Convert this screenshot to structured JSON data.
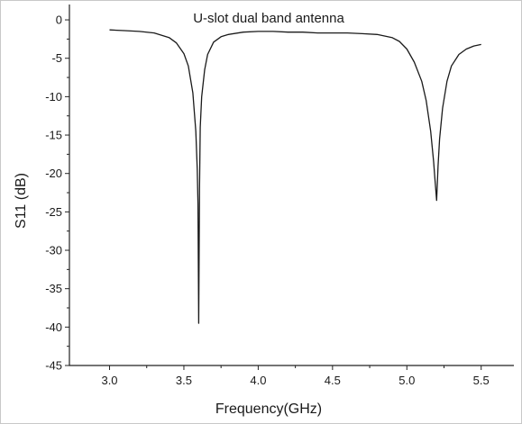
{
  "chart_data": {
    "type": "line",
    "title": "U-slot dual band antenna",
    "xlabel": "Frequency(GHz)",
    "ylabel": "S11 (dB)",
    "xlim": [
      2.73,
      5.72
    ],
    "ylim": [
      -45,
      2
    ],
    "xticks": [
      3.0,
      3.5,
      4.0,
      4.5,
      5.0,
      5.5
    ],
    "xtick_labels": [
      "3.0",
      "3.5",
      "4.0",
      "4.5",
      "5.0",
      "5.5"
    ],
    "yticks": [
      0,
      -5,
      -10,
      -15,
      -20,
      -25,
      -30,
      -35,
      -40,
      -45
    ],
    "ytick_labels": [
      "0",
      "-5",
      "-10",
      "-15",
      "-20",
      "-25",
      "-30",
      "-35",
      "-40",
      "-45"
    ],
    "grid": false,
    "legend": "none",
    "line_color": "#1a1a1a",
    "series": [
      {
        "x": [
          3.0,
          3.1,
          3.2,
          3.3,
          3.4,
          3.45,
          3.5,
          3.53,
          3.56,
          3.58,
          3.59,
          3.595,
          3.6,
          3.605,
          3.61,
          3.62,
          3.64,
          3.66,
          3.7,
          3.75,
          3.8,
          3.9,
          4.0,
          4.1,
          4.2,
          4.3,
          4.4,
          4.5,
          4.6,
          4.7,
          4.8,
          4.9,
          4.95,
          5.0,
          5.05,
          5.1,
          5.13,
          5.16,
          5.18,
          5.19,
          5.2,
          5.21,
          5.22,
          5.24,
          5.27,
          5.3,
          5.35,
          5.4,
          5.45,
          5.5
        ],
        "y": [
          -1.3,
          -1.4,
          -1.5,
          -1.7,
          -2.3,
          -3.0,
          -4.4,
          -6.0,
          -9.5,
          -14.5,
          -19.5,
          -24.0,
          -39.5,
          -22.0,
          -14.0,
          -10.0,
          -6.5,
          -4.5,
          -2.9,
          -2.2,
          -1.9,
          -1.6,
          -1.5,
          -1.5,
          -1.6,
          -1.6,
          -1.7,
          -1.7,
          -1.7,
          -1.8,
          -1.9,
          -2.3,
          -2.8,
          -3.8,
          -5.5,
          -8.0,
          -10.5,
          -14.5,
          -18.5,
          -21.0,
          -23.5,
          -19.0,
          -15.5,
          -11.5,
          -8.0,
          -6.0,
          -4.5,
          -3.8,
          -3.4,
          -3.2
        ]
      }
    ]
  }
}
